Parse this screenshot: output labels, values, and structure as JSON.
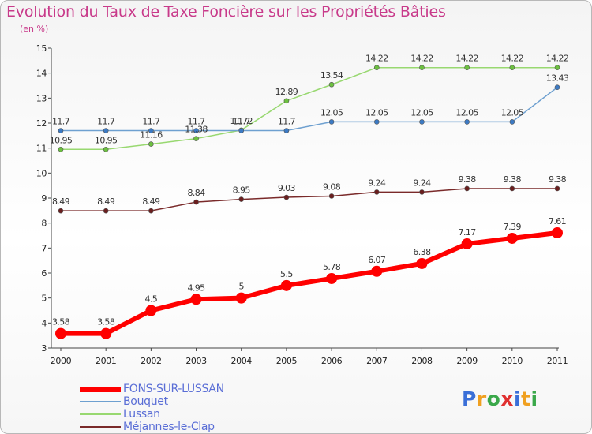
{
  "title": "Evolution du Taux de Taxe Foncière sur les Propriétés Bâties",
  "unit_label": "(en %)",
  "logo": {
    "letters": [
      "P",
      "r",
      "o",
      "x",
      "i",
      "t",
      "i"
    ],
    "colors": [
      "#3a6fd8",
      "#f0a020",
      "#3aa84a",
      "#e03030",
      "#3a6fd8",
      "#f0a020",
      "#3aa84a"
    ]
  },
  "chart_data": {
    "type": "line",
    "title": "Evolution du Taux de Taxe Foncière sur les Propriétés Bâties",
    "ylabel": "(en %)",
    "xlabel": "",
    "x": [
      "2000",
      "2001",
      "2002",
      "2003",
      "2004",
      "2005",
      "2006",
      "2007",
      "2008",
      "2009",
      "2010",
      "2011"
    ],
    "ylim": [
      3,
      15
    ],
    "yticks": [
      "3",
      "4",
      "5",
      "6",
      "7",
      "8",
      "9",
      "10",
      "11",
      "12",
      "13",
      "14",
      "15"
    ],
    "grid": false,
    "legend_position": "bottom-left",
    "series": [
      {
        "name": "FONS-SUR-LUSSAN",
        "color": "#ff0000",
        "marker_color": "#ff0000",
        "values": [
          3.58,
          3.58,
          4.5,
          4.95,
          5,
          5.5,
          5.78,
          6.07,
          6.38,
          7.17,
          7.39,
          7.61
        ],
        "labels": [
          "3.58",
          "3.58",
          "4.5",
          "4.95",
          "5",
          "5.5",
          "5.78",
          "6.07",
          "6.38",
          "7.17",
          "7.39",
          "7.61"
        ]
      },
      {
        "name": "Bouquet",
        "color": "#6ea0d0",
        "marker_color": "#3c7ac4",
        "values": [
          11.7,
          11.7,
          11.7,
          11.7,
          11.7,
          11.7,
          12.05,
          12.05,
          12.05,
          12.05,
          12.05,
          13.43
        ],
        "labels": [
          "11.7",
          "11.7",
          "11.7",
          "11.7",
          "11.7",
          "11.7",
          "12.05",
          "12.05",
          "12.05",
          "12.05",
          "12.05",
          "13.43"
        ]
      },
      {
        "name": "Lussan",
        "color": "#98d870",
        "marker_color": "#6cc040",
        "values": [
          10.95,
          10.95,
          11.16,
          11.38,
          11.72,
          12.89,
          13.54,
          14.22,
          14.22,
          14.22,
          14.22,
          14.22
        ],
        "labels": [
          "10.95",
          "10.95",
          "11.16",
          "11.38",
          "11.72",
          "12.89",
          "13.54",
          "14.22",
          "14.22",
          "14.22",
          "14.22",
          "14.22"
        ]
      },
      {
        "name": "Méjannes-le-Clap",
        "color": "#7a2a2a",
        "marker_color": "#6a1e1e",
        "values": [
          8.49,
          8.49,
          8.49,
          8.84,
          8.95,
          9.03,
          9.08,
          9.24,
          9.24,
          9.38,
          9.38,
          9.38
        ],
        "labels": [
          "8.49",
          "8.49",
          "8.49",
          "8.84",
          "8.95",
          "9.03",
          "9.08",
          "9.24",
          "9.24",
          "9.38",
          "9.38",
          "9.38"
        ]
      }
    ]
  }
}
